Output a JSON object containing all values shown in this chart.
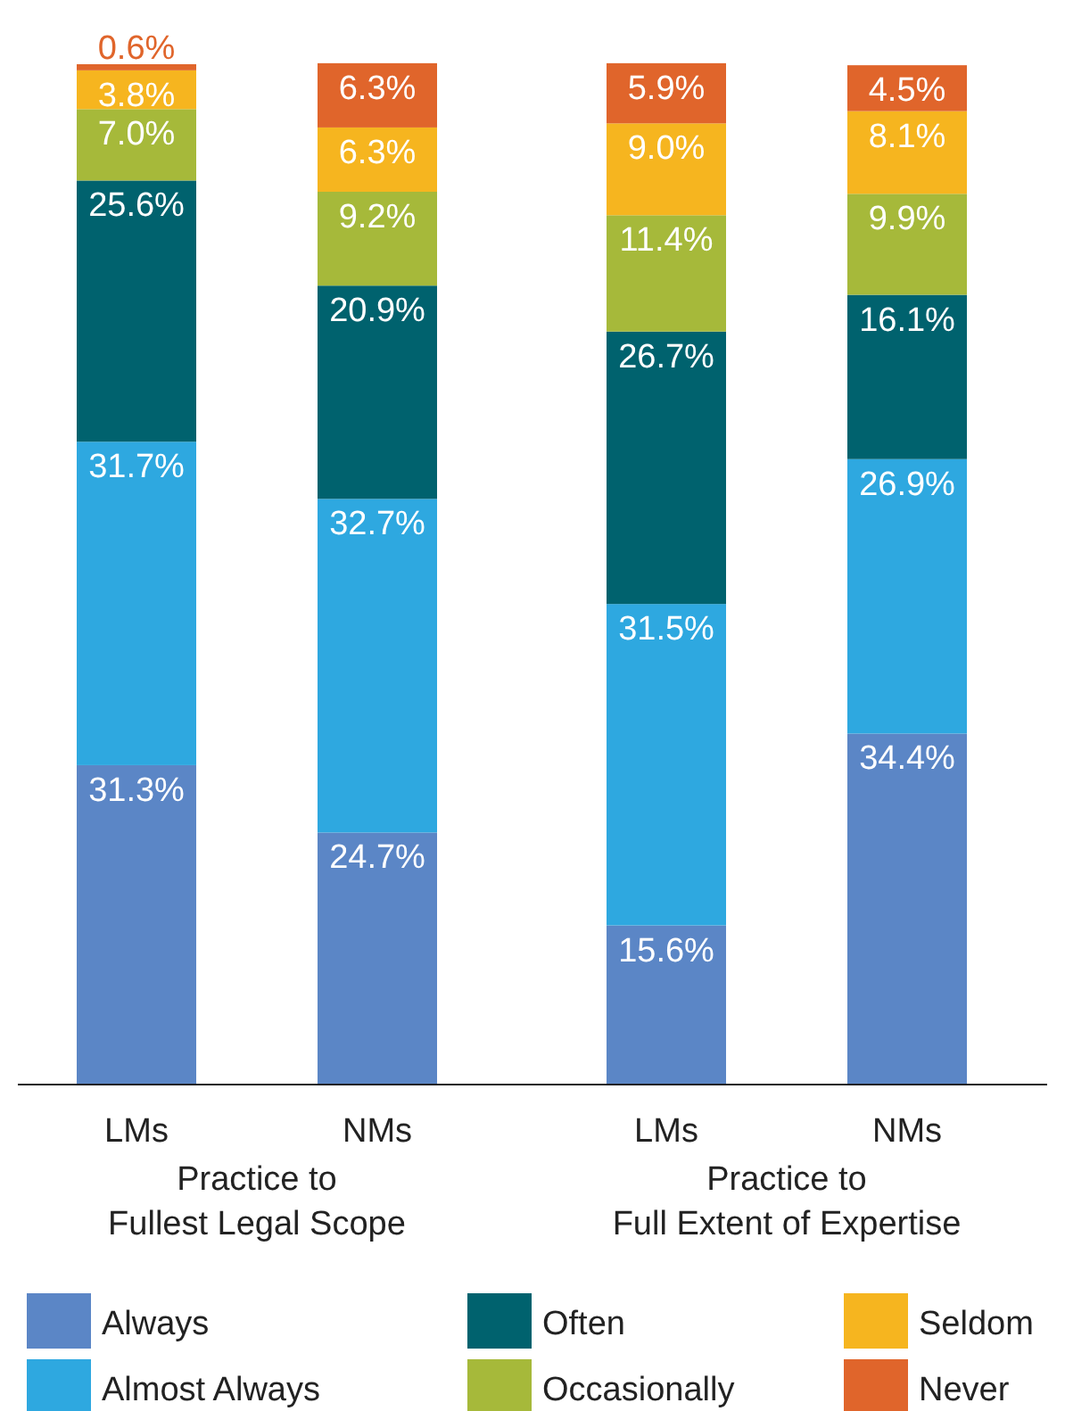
{
  "chart_data": {
    "type": "bar",
    "stacked": true,
    "categories": [
      "LMs",
      "NMs",
      "LMs",
      "NMs"
    ],
    "ylim": [
      0,
      100
    ],
    "legend": "bottom",
    "annotations": [
      "Practice to\nFullest Legal Scope",
      "Practice to\nFull Extent of Expertise"
    ],
    "series": [
      {
        "name": "Always",
        "color": "#5b86c6",
        "values": [
          31.3,
          24.7,
          15.6,
          34.4
        ],
        "value_labels": [
          "31.3%",
          "24.7%",
          "15.6%",
          "34.4%"
        ]
      },
      {
        "name": "Almost Always",
        "color": "#2ea8e0",
        "values": [
          31.7,
          32.7,
          31.5,
          26.9
        ],
        "value_labels": [
          "31.7%",
          "32.7%",
          "31.5%",
          "26.9%"
        ]
      },
      {
        "name": "Often",
        "color": "#00626e",
        "values": [
          25.6,
          20.9,
          26.7,
          16.1
        ],
        "value_labels": [
          "25.6%",
          "20.9%",
          "26.7%",
          "16.1%"
        ]
      },
      {
        "name": "Occasionally",
        "color": "#a6b93a",
        "values": [
          7.0,
          9.2,
          11.4,
          9.9
        ],
        "value_labels": [
          "7.0%",
          "9.2%",
          "11.4%",
          "9.9%"
        ]
      },
      {
        "name": "Seldom",
        "color": "#f6b51f",
        "values": [
          3.8,
          6.3,
          9.0,
          8.1
        ],
        "value_labels": [
          "3.8%",
          "6.3%",
          "9.0%",
          "8.1%"
        ]
      },
      {
        "name": "Never",
        "color": "#e0652b",
        "values": [
          0.6,
          6.3,
          5.9,
          4.5
        ],
        "value_labels": [
          "0.6%",
          "6.3%",
          "5.9%",
          "4.5%"
        ]
      }
    ]
  }
}
